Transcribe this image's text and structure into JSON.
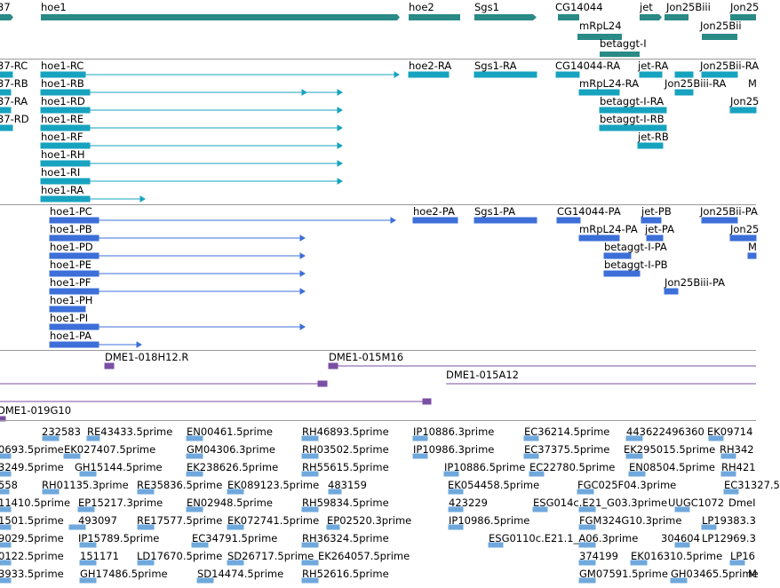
{
  "colors": {
    "gene": "#2a8a86",
    "transcript": "#17a3bf",
    "protein": "#3c6fd8",
    "clone": "#7a4fa3",
    "est": "#6fa8dc",
    "divider": "#9a9a9a"
  },
  "genes": {
    "labels": [
      "37",
      "hoe1",
      "hoe2",
      "Sgs1",
      "CG14044",
      "jet",
      "Jon25Biii",
      "Jon25",
      "mRpL24",
      "Jon25Bii",
      "betaggt-I"
    ]
  },
  "transcripts": {
    "labels": [
      "37-RC",
      "hoe1-RC",
      "hoe2-RA",
      "Sgs1-RA",
      "CG14044-RA",
      "jet-RA",
      "Jon25Bii-RA",
      "37-RB",
      "hoe1-RB",
      "mRpL24-RA",
      "Jon25Biii-RA",
      "M",
      "37-RA",
      "hoe1-RD",
      "betaggt-I-RA",
      "Jon25",
      "37-RD",
      "hoe1-RE",
      "betaggt-I-RB",
      "hoe1-RF",
      "jet-RB",
      "hoe1-RH",
      "hoe1-RI",
      "hoe1-RA"
    ]
  },
  "proteins": {
    "labels": [
      "hoe1-PC",
      "hoe2-PA",
      "Sgs1-PA",
      "CG14044-PA",
      "jet-PB",
      "Jon25Bii-PA",
      "hoe1-PB",
      "mRpL24-PA",
      "jet-PA",
      "Jon25",
      "hoe1-PD",
      "betaggt-I-PA",
      "M",
      "hoe1-PE",
      "betaggt-I-PB",
      "hoe1-PF",
      "Jon25Biii-PA",
      "hoe1-PH",
      "hoe1-PI",
      "hoe1-PA"
    ]
  },
  "clones": {
    "labels": [
      "DME1-018H12.R",
      "DME1-015M16",
      "DME1-015A12",
      "DME1-019G10"
    ]
  },
  "ests": {
    "labels": [
      "232583",
      "RE43433.5prime",
      "EN00461.5prime",
      "RH46893.5prime",
      "IP10886.3prime",
      "EC36214.5prime",
      "443622496360",
      "EK09714",
      "0693.5prime",
      "EK027407.5prime",
      "GM04306.3prime",
      "RH03502.5prime",
      "IP10986.3prime",
      "EC37375.5prime",
      "EK295015.5prime",
      "RH342",
      "3249.5prime",
      "GH15144.5prime",
      "EK238626.5prime",
      "RH55615.5prime",
      "IP10886.5prime",
      "EC22780.5prime",
      "EN08504.5prime",
      "RH421",
      "558",
      "RH01135.3prime",
      "RE35836.5prime",
      "EK089123.5prime",
      "483159",
      "EK054458.5prime",
      "EC31327.5",
      "11410.5prime",
      "EP15217.3prime",
      "EN02948.5prime",
      "RH59834.5prime",
      "FGC025F04.3prime",
      "UUGC1072",
      "DmeI",
      "1501.5prime",
      "493097",
      "RE17577.5prime",
      "EK072741.5prime",
      "EP02520.3prime",
      "423229",
      "ESG014c.E21_G03.3prime",
      "9029.5prime",
      "IP10986.5prime",
      "FGM324G10.3prime",
      "LP19383.3",
      "0122.5prime",
      "IP15789.5prime",
      "EC34791.5prime",
      "RH36324.5prime",
      "ESG0110c.E21.1_A06.3prime",
      "304604",
      "LP12969.3",
      "3933.5prime",
      "151171",
      "LD17670.5prime",
      "SD26717.5prime",
      "EK264057.5prime",
      "374199",
      "EK016310.5prime",
      "LP16",
      "GH17486.5prime",
      "SD14474.5prime",
      "RH52616.5prime",
      "GM07591.5prime",
      "GH03465.5prime",
      "M"
    ]
  }
}
